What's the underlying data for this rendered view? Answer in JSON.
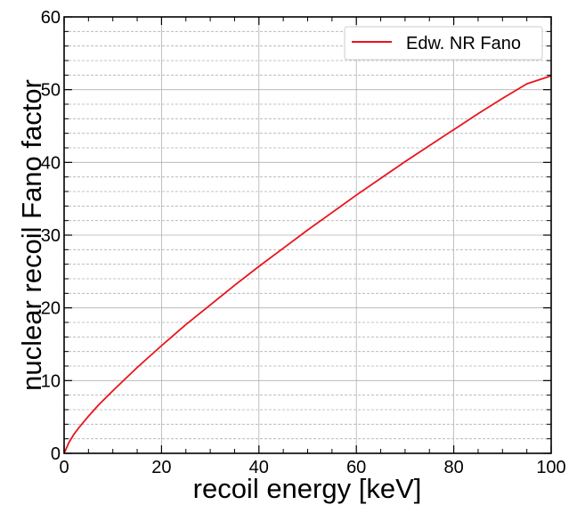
{
  "chart_data": {
    "type": "line",
    "title": "",
    "xlabel": "recoil energy [keV]",
    "ylabel": "nuclear recoil Fano factor",
    "xlim": [
      0,
      100
    ],
    "ylim": [
      0,
      60
    ],
    "x_ticks": [
      0,
      20,
      40,
      60,
      80,
      100
    ],
    "y_ticks": [
      0,
      10,
      20,
      30,
      40,
      50,
      60
    ],
    "x_tick_labels": [
      "0",
      "20",
      "40",
      "60",
      "80",
      "100"
    ],
    "y_tick_labels": [
      "0",
      "10",
      "20",
      "30",
      "40",
      "50",
      "60"
    ],
    "grid": true,
    "legend_position": "top-right",
    "series": [
      {
        "name": "Edw. NR Fano",
        "color": "#e8141b",
        "x": [
          0,
          1,
          2,
          3,
          5,
          7,
          10,
          15,
          20,
          25,
          30,
          35,
          40,
          45,
          50,
          55,
          60,
          65,
          70,
          75,
          80,
          85,
          90,
          95,
          100
        ],
        "y": [
          0,
          1.5,
          2.6,
          3.5,
          5.1,
          6.6,
          8.6,
          11.8,
          14.8,
          17.7,
          20.4,
          23.1,
          25.7,
          28.2,
          30.7,
          33.1,
          35.5,
          37.8,
          40.1,
          42.3,
          44.5,
          46.7,
          48.8,
          50.8,
          51.9
        ]
      }
    ]
  }
}
